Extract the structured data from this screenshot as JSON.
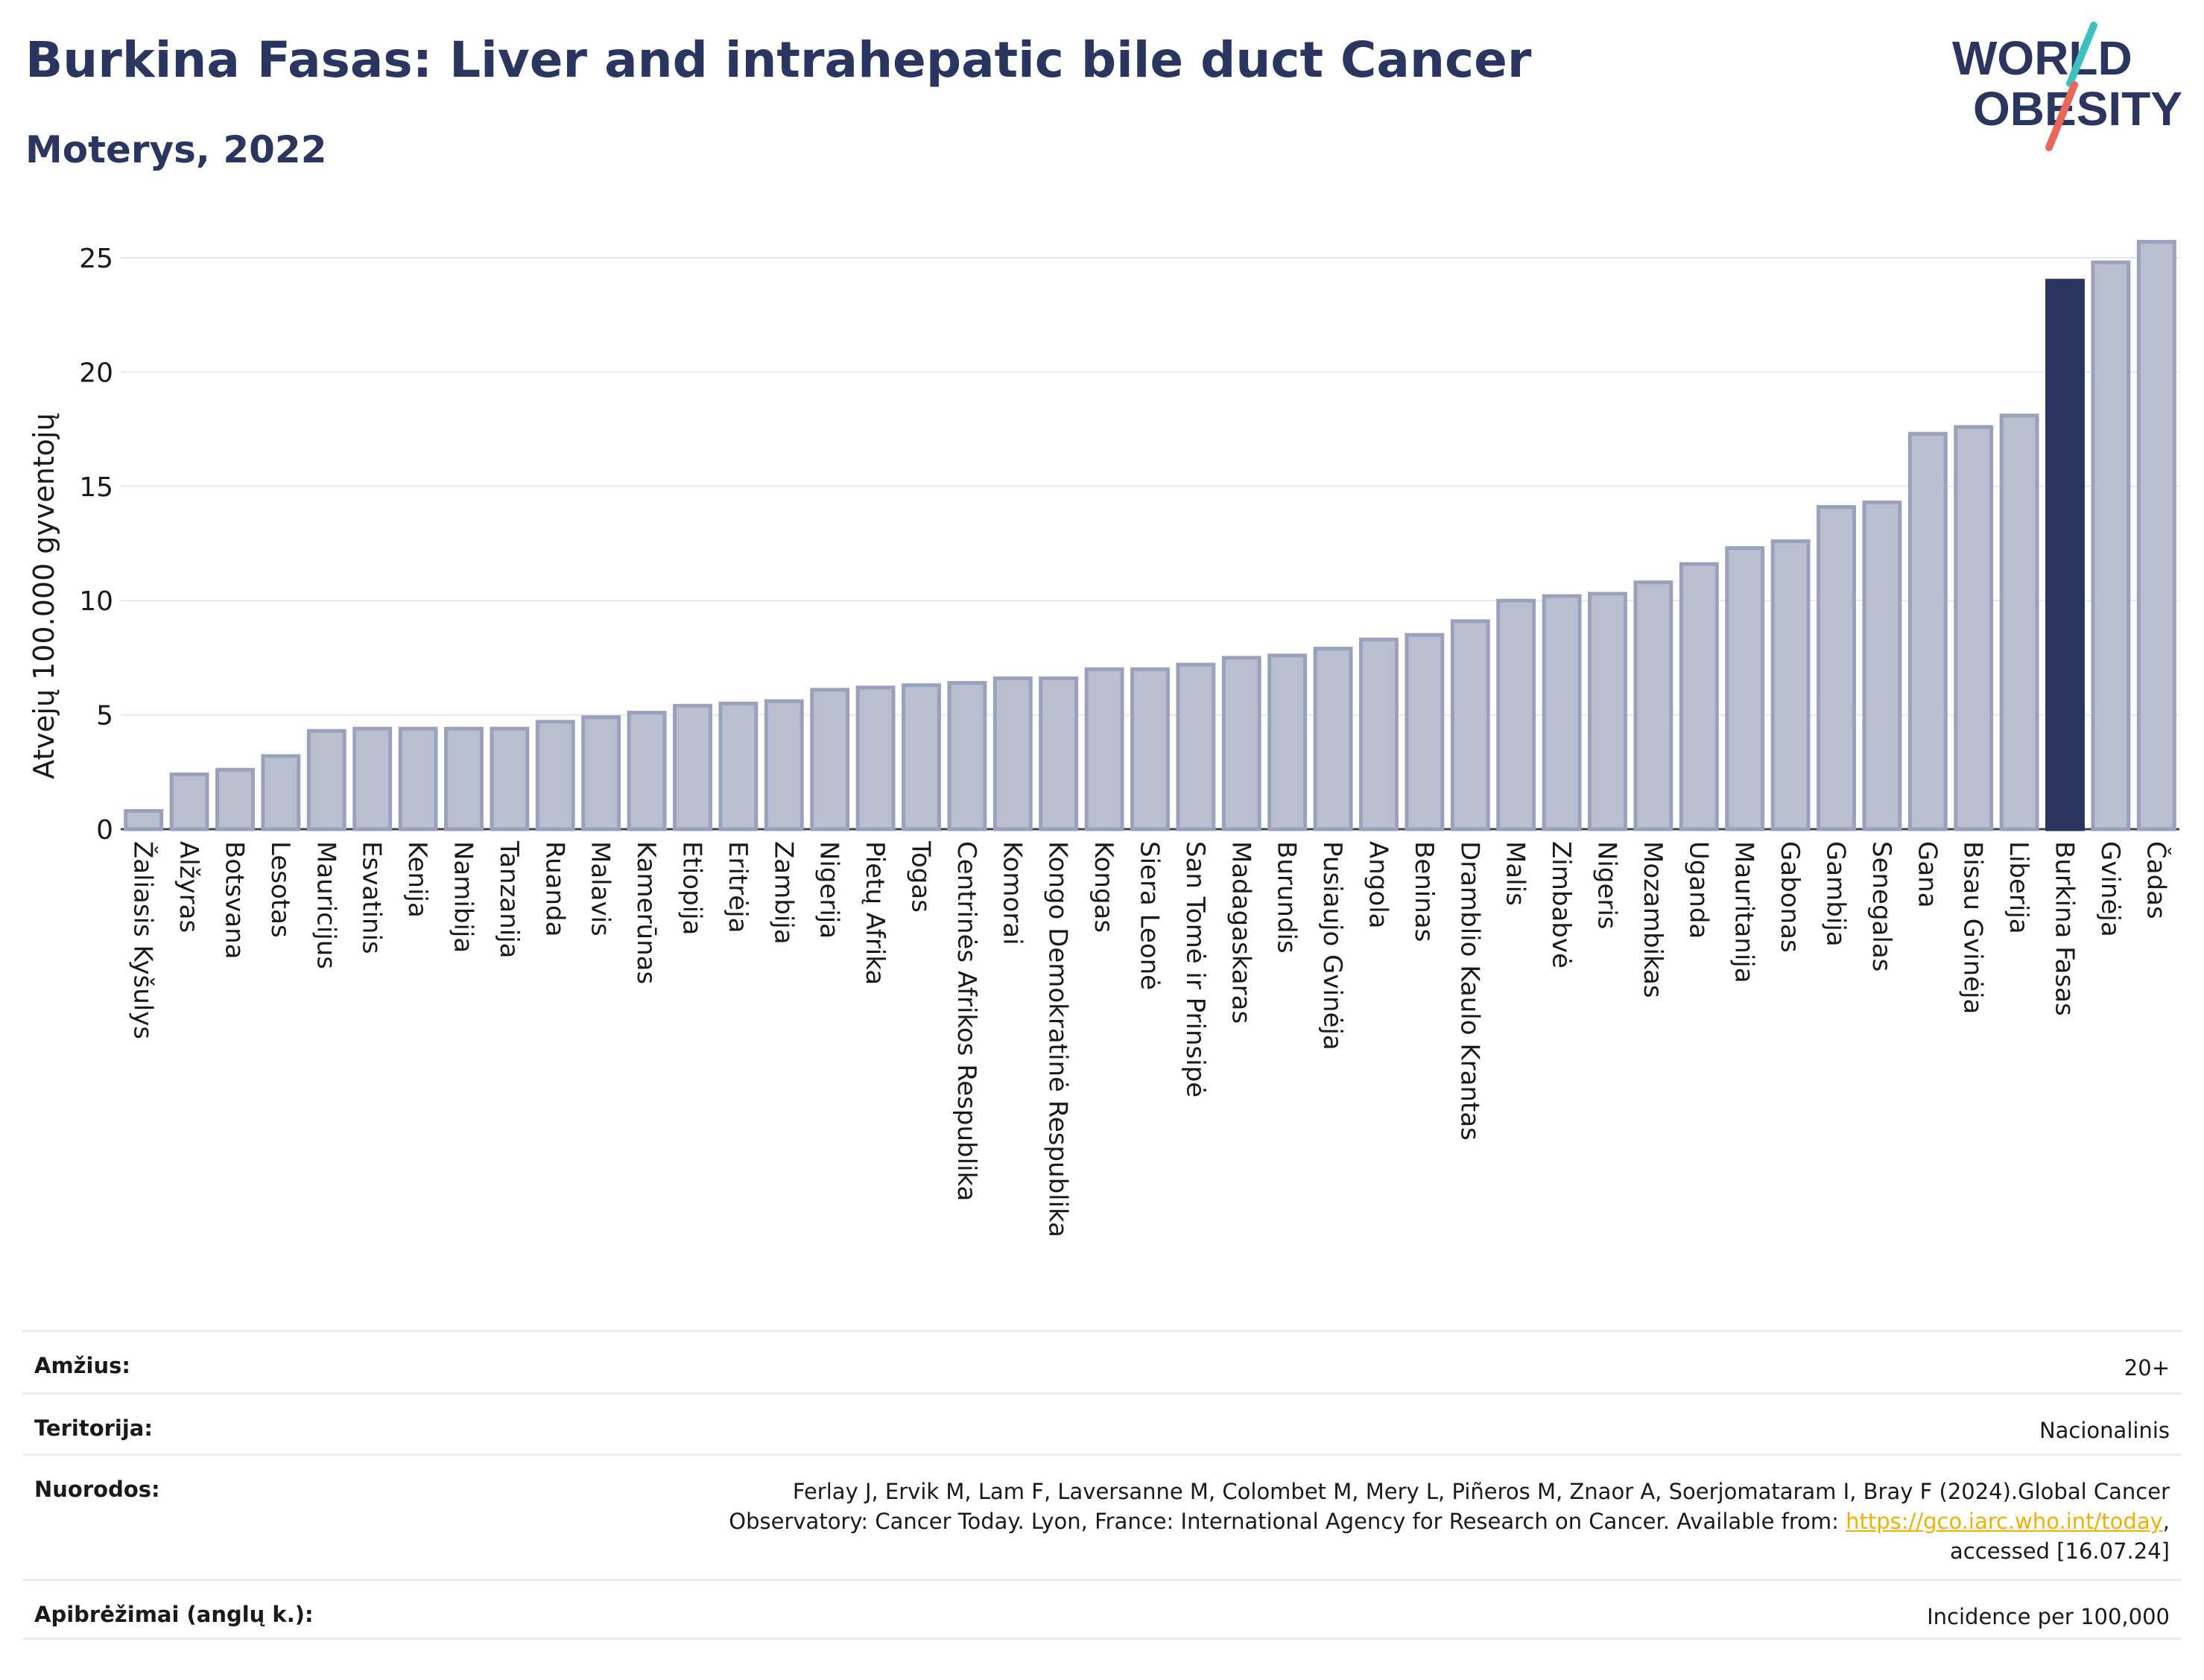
{
  "header": {
    "title": "Burkina Fasas: Liver and intrahepatic bile duct Cancer",
    "subtitle": "Moterys, 2022"
  },
  "logo": {
    "line1": "WORLD",
    "line2": "OBESITY",
    "accent_teal": "#3cc0c0",
    "accent_red": "#e8675a"
  },
  "colors": {
    "bar": "#b9bfcf",
    "bar_stroke": "#9aa1bd",
    "highlight": "#2a3560",
    "grid": "#e6e8ef",
    "text": "#2a3560"
  },
  "chart_data": {
    "type": "bar",
    "title": "Burkina Fasas: Liver and intrahepatic bile duct Cancer",
    "subtitle": "Moterys, 2022",
    "ylabel": "Atvejų 100.000 gyventojų",
    "xlabel": "",
    "ylim": [
      0,
      26.5
    ],
    "yticks": [
      0,
      5,
      10,
      15,
      20,
      25
    ],
    "grid": true,
    "highlight": "Burkina Fasas",
    "categories": [
      "Žaliasis Kyšulys",
      "Alžyras",
      "Botsvana",
      "Lesotas",
      "Mauricijus",
      "Esvatinis",
      "Kenija",
      "Namibija",
      "Tanzanija",
      "Ruanda",
      "Malavis",
      "Kamerūnas",
      "Etiopija",
      "Eritrėja",
      "Zambija",
      "Nigerija",
      "Pietų Afrika",
      "Togas",
      "Centrinės Afrikos Respublika",
      "Komorai",
      "Kongo Demokratinė Respublika",
      "Kongas",
      "Siera Leonė",
      "San Tomė ir Prinsipė",
      "Madagaskaras",
      "Burundis",
      "Pusiaujo Gvinėja",
      "Angola",
      "Beninas",
      "Dramblio Kaulo Krantas",
      "Malis",
      "Zimbabvė",
      "Nigeris",
      "Mozambikas",
      "Uganda",
      "Mauritanija",
      "Gabonas",
      "Gambija",
      "Senegalas",
      "Gana",
      "Bisau Gvinėja",
      "Liberija",
      "Burkina Fasas",
      "Gvinėja",
      "Čadas"
    ],
    "values": [
      0.8,
      2.4,
      2.6,
      3.2,
      4.3,
      4.4,
      4.4,
      4.4,
      4.4,
      4.7,
      4.9,
      5.1,
      5.4,
      5.5,
      5.6,
      6.1,
      6.2,
      6.3,
      6.4,
      6.6,
      6.6,
      7.0,
      7.0,
      7.2,
      7.5,
      7.6,
      7.9,
      8.3,
      8.5,
      9.1,
      10.0,
      10.2,
      10.3,
      10.8,
      11.6,
      12.3,
      12.6,
      14.1,
      14.3,
      17.3,
      17.6,
      18.1,
      24.0,
      24.8,
      25.7
    ]
  },
  "meta": {
    "age_label": "Amžius:",
    "age_value": "20+",
    "territory_label": "Teritorija:",
    "territory_value": "Nacionalinis",
    "refs_label": "Nuorodos:",
    "refs_line1": "Ferlay J, Ervik M, Lam F, Laversanne M, Colombet M, Mery L, Piñeros M, Znaor A, Soerjomataram I, Bray F (2024).Global Cancer",
    "refs_line2_pre": "Observatory: Cancer Today. Lyon, France: International Agency for Research on Cancer. Available from: ",
    "refs_link": "https://gco.iarc.who.int/today",
    "refs_line2_post": ",",
    "refs_line3": "accessed [16.07.24]",
    "defs_label": "Apibrėžimai (anglų k.):",
    "defs_value": "Incidence per 100,000"
  }
}
